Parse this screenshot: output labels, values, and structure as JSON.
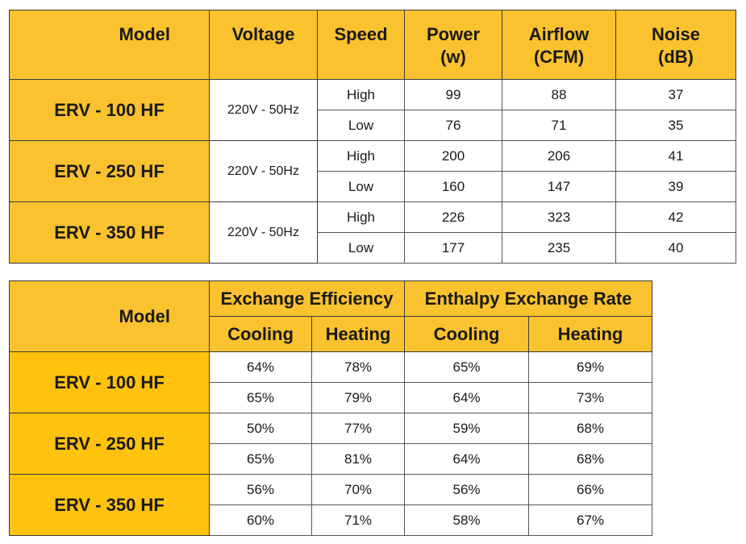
{
  "spec_table": {
    "headers": [
      "Model",
      "Voltage",
      "Speed",
      "Power\n(w)",
      "Airflow\n(CFM)",
      "Noise\n(dB)"
    ],
    "header_lines": [
      [
        "Model"
      ],
      [
        "Voltage"
      ],
      [
        "Speed"
      ],
      [
        "Power",
        "(w)"
      ],
      [
        "Airflow",
        "(CFM)"
      ],
      [
        "Noise",
        "(dB)"
      ]
    ],
    "models": [
      {
        "model": "ERV - 100 HF",
        "voltage": "220V - 50Hz",
        "rows": [
          {
            "speed": "High",
            "power": "99",
            "airflow": "88",
            "noise": "37"
          },
          {
            "speed": "Low",
            "power": "76",
            "airflow": "71",
            "noise": "35"
          }
        ]
      },
      {
        "model": "ERV - 250 HF",
        "voltage": "220V - 50Hz",
        "rows": [
          {
            "speed": "High",
            "power": "200",
            "airflow": "206",
            "noise": "41"
          },
          {
            "speed": "Low",
            "power": "160",
            "airflow": "147",
            "noise": "39"
          }
        ]
      },
      {
        "model": "ERV - 350 HF",
        "voltage": "220V - 50Hz",
        "rows": [
          {
            "speed": "High",
            "power": "226",
            "airflow": "323",
            "noise": "42"
          },
          {
            "speed": "Low",
            "power": "177",
            "airflow": "235",
            "noise": "40"
          }
        ]
      }
    ]
  },
  "efficiency_table": {
    "model_header": "Model",
    "group_headers": [
      "Exchange Efficiency",
      "Enthalpy Exchange Rate"
    ],
    "sub_headers": [
      "Cooling",
      "Heating",
      "Cooling",
      "Heating"
    ],
    "models": [
      {
        "model": "ERV - 100 HF",
        "rows": [
          [
            "64%",
            "78%",
            "65%",
            "69%"
          ],
          [
            "65%",
            "79%",
            "64%",
            "73%"
          ]
        ]
      },
      {
        "model": "ERV - 250 HF",
        "rows": [
          [
            "50%",
            "77%",
            "59%",
            "68%"
          ],
          [
            "65%",
            "81%",
            "64%",
            "68%"
          ]
        ]
      },
      {
        "model": "ERV - 350 HF",
        "rows": [
          [
            "56%",
            "70%",
            "56%",
            "66%"
          ],
          [
            "60%",
            "71%",
            "58%",
            "67%"
          ]
        ]
      }
    ]
  },
  "colors": {
    "header": "#F9C22E",
    "model_cell_2": "#FFC20E",
    "border": "#3a3a3a"
  }
}
